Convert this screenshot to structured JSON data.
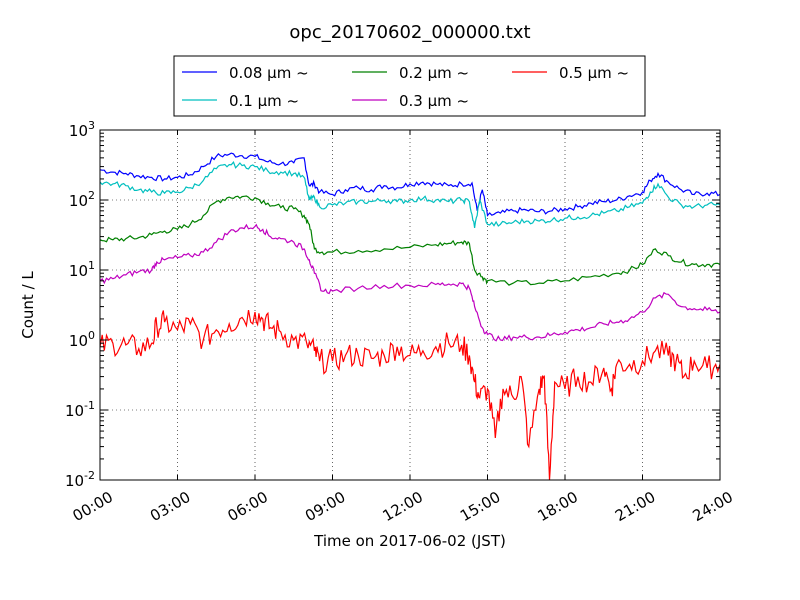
{
  "chart_data": {
    "type": "line",
    "title": "opc_20170602_000000.txt",
    "xlabel": "Time on 2017-06-02 (JST)",
    "ylabel": "Count / L",
    "x_unit": "hours",
    "xlim": [
      0,
      24
    ],
    "ylim": [
      0.01,
      1000
    ],
    "yscale": "log",
    "grid": true,
    "legend_position": "top-center",
    "x_ticks": [
      "00:00",
      "03:00",
      "06:00",
      "09:00",
      "12:00",
      "15:00",
      "18:00",
      "21:00",
      "24:00"
    ],
    "x_tick_values": [
      0,
      3,
      6,
      9,
      12,
      15,
      18,
      21,
      24
    ],
    "y_ticks": [
      {
        "value": 0.01,
        "base": "10",
        "exp": "-2"
      },
      {
        "value": 0.1,
        "base": "10",
        "exp": "-1"
      },
      {
        "value": 1,
        "base": "10",
        "exp": "0"
      },
      {
        "value": 10,
        "base": "10",
        "exp": "1"
      },
      {
        "value": 100,
        "base": "10",
        "exp": "2"
      },
      {
        "value": 1000,
        "base": "10",
        "exp": "3"
      }
    ],
    "series": [
      {
        "name": "0.08 μm ~",
        "color": "#0000ff",
        "x": [
          0,
          0.5,
          1,
          1.5,
          2,
          2.5,
          3,
          3.5,
          4,
          4.5,
          5,
          5.5,
          6,
          6.5,
          7,
          7.5,
          7.9,
          8.1,
          8.3,
          8.5,
          9,
          9.5,
          10,
          10.5,
          11,
          11.5,
          12,
          12.5,
          13,
          13.5,
          14,
          14.4,
          14.6,
          14.8,
          15,
          15.5,
          16,
          16.5,
          17,
          17.5,
          18,
          18.5,
          19,
          19.5,
          20,
          20.5,
          21,
          21.3,
          21.6,
          22,
          22.5,
          23,
          23.5,
          24
        ],
        "y": [
          270,
          250,
          240,
          220,
          210,
          200,
          210,
          230,
          300,
          420,
          450,
          430,
          420,
          350,
          330,
          340,
          400,
          160,
          170,
          130,
          120,
          140,
          150,
          140,
          160,
          150,
          170,
          180,
          170,
          160,
          170,
          175,
          70,
          140,
          60,
          65,
          70,
          72,
          68,
          70,
          75,
          80,
          90,
          95,
          100,
          115,
          130,
          190,
          240,
          180,
          140,
          120,
          125,
          120
        ]
      },
      {
        "name": "0.2 μm ~",
        "color": "#008000",
        "x": [
          0,
          0.5,
          1,
          1.5,
          2,
          2.5,
          3,
          3.5,
          4,
          4.5,
          5,
          5.5,
          6,
          6.5,
          7,
          7.5,
          7.9,
          8.1,
          8.3,
          8.6,
          9,
          10,
          11,
          12,
          13,
          13.5,
          14,
          14.3,
          14.5,
          14.8,
          15,
          16,
          17,
          18,
          19,
          20,
          20.5,
          21,
          21.5,
          22,
          22.5,
          23,
          23.5,
          24
        ],
        "y": [
          27,
          27,
          28,
          29,
          32,
          36,
          38,
          45,
          60,
          95,
          110,
          112,
          108,
          90,
          78,
          75,
          60,
          45,
          20,
          18,
          18,
          19,
          20,
          21,
          23,
          24,
          25,
          24,
          10,
          8,
          7,
          6.5,
          6.5,
          7,
          8,
          9,
          10,
          12,
          20,
          16,
          13,
          12,
          12,
          12
        ]
      },
      {
        "name": "0.5 μm ~",
        "color": "#ff0000",
        "x": [
          0,
          0.5,
          1,
          1.5,
          2,
          2.2,
          2.5,
          3,
          3.5,
          4,
          4.5,
          5,
          5.5,
          6,
          6.3,
          6.6,
          7,
          7.5,
          8,
          8.3,
          8.5,
          9,
          9.5,
          10,
          10.5,
          11,
          11.5,
          12,
          12.5,
          13,
          13.5,
          14,
          14.3,
          14.5,
          14.7,
          15,
          15.3,
          15.6,
          16,
          16.3,
          16.6,
          17,
          17.2,
          17.4,
          17.6,
          18,
          18.5,
          19,
          19.5,
          19.8,
          20,
          20.5,
          21,
          21.5,
          22,
          22.3,
          22.6,
          23,
          23.5,
          24
        ],
        "y": [
          0.8,
          0.9,
          0.85,
          0.75,
          0.9,
          1.6,
          1.8,
          1.4,
          1.7,
          1.0,
          1.4,
          1.7,
          2.1,
          2.5,
          2.0,
          1.5,
          1.3,
          1.0,
          0.9,
          0.7,
          0.5,
          0.5,
          0.6,
          0.6,
          0.55,
          0.6,
          0.8,
          0.6,
          0.7,
          0.8,
          0.9,
          0.85,
          0.6,
          0.25,
          0.15,
          0.2,
          0.04,
          0.2,
          0.15,
          0.3,
          0.03,
          0.2,
          0.3,
          0.01,
          0.25,
          0.2,
          0.3,
          0.25,
          0.4,
          0.2,
          0.45,
          0.45,
          0.5,
          0.7,
          0.6,
          0.5,
          0.3,
          0.5,
          0.4,
          0.45
        ]
      },
      {
        "name": "0.1 μm ~",
        "color": "#00bfbf",
        "x": [
          0,
          0.5,
          1,
          1.5,
          2,
          2.5,
          3,
          3.5,
          4,
          4.5,
          5,
          5.5,
          6,
          6.5,
          7,
          7.5,
          7.9,
          8.1,
          8.3,
          8.5,
          9,
          9.5,
          10,
          10.5,
          11,
          11.5,
          12,
          12.5,
          13,
          13.5,
          14,
          14.3,
          14.5,
          14.7,
          15,
          15.5,
          16,
          16.5,
          17,
          17.5,
          18,
          18.5,
          19,
          19.5,
          20,
          20.5,
          21,
          21.3,
          21.6,
          22,
          22.5,
          23,
          23.5,
          24
        ],
        "y": [
          180,
          170,
          160,
          140,
          130,
          125,
          130,
          150,
          190,
          280,
          320,
          310,
          300,
          260,
          250,
          240,
          210,
          100,
          110,
          80,
          85,
          90,
          95,
          95,
          100,
          95,
          100,
          105,
          100,
          95,
          100,
          95,
          40,
          100,
          45,
          45,
          48,
          50,
          50,
          52,
          55,
          57,
          60,
          65,
          70,
          80,
          90,
          130,
          170,
          110,
          85,
          80,
          85,
          85
        ]
      },
      {
        "name": "0.3 μm ~",
        "color": "#bf00bf",
        "x": [
          0,
          0.5,
          1,
          1.5,
          2,
          2.2,
          2.5,
          3,
          3.5,
          4,
          4.5,
          5,
          5.5,
          6,
          6.3,
          6.6,
          7,
          7.5,
          7.9,
          8.1,
          8.3,
          8.6,
          9,
          10,
          11,
          12,
          13,
          13.5,
          14,
          14.3,
          14.5,
          14.8,
          15,
          15.5,
          16,
          16.5,
          17,
          17.5,
          18,
          18.5,
          19,
          19.5,
          20,
          20.5,
          21,
          21.5,
          22,
          22.5,
          23,
          23.5,
          24
        ],
        "y": [
          7,
          7.5,
          8.5,
          9.5,
          10,
          13,
          14,
          15,
          16,
          18,
          25,
          35,
          40,
          42,
          38,
          30,
          28,
          25,
          20,
          14,
          9,
          5,
          5,
          5.5,
          6,
          6,
          6.2,
          6.3,
          6.4,
          5.5,
          3.0,
          1.5,
          1.2,
          1.0,
          1.1,
          1.1,
          1.1,
          1.2,
          1.3,
          1.4,
          1.5,
          1.7,
          1.8,
          2.0,
          2.5,
          4.0,
          4.5,
          3.0,
          2.8,
          2.7,
          2.5
        ]
      }
    ]
  }
}
